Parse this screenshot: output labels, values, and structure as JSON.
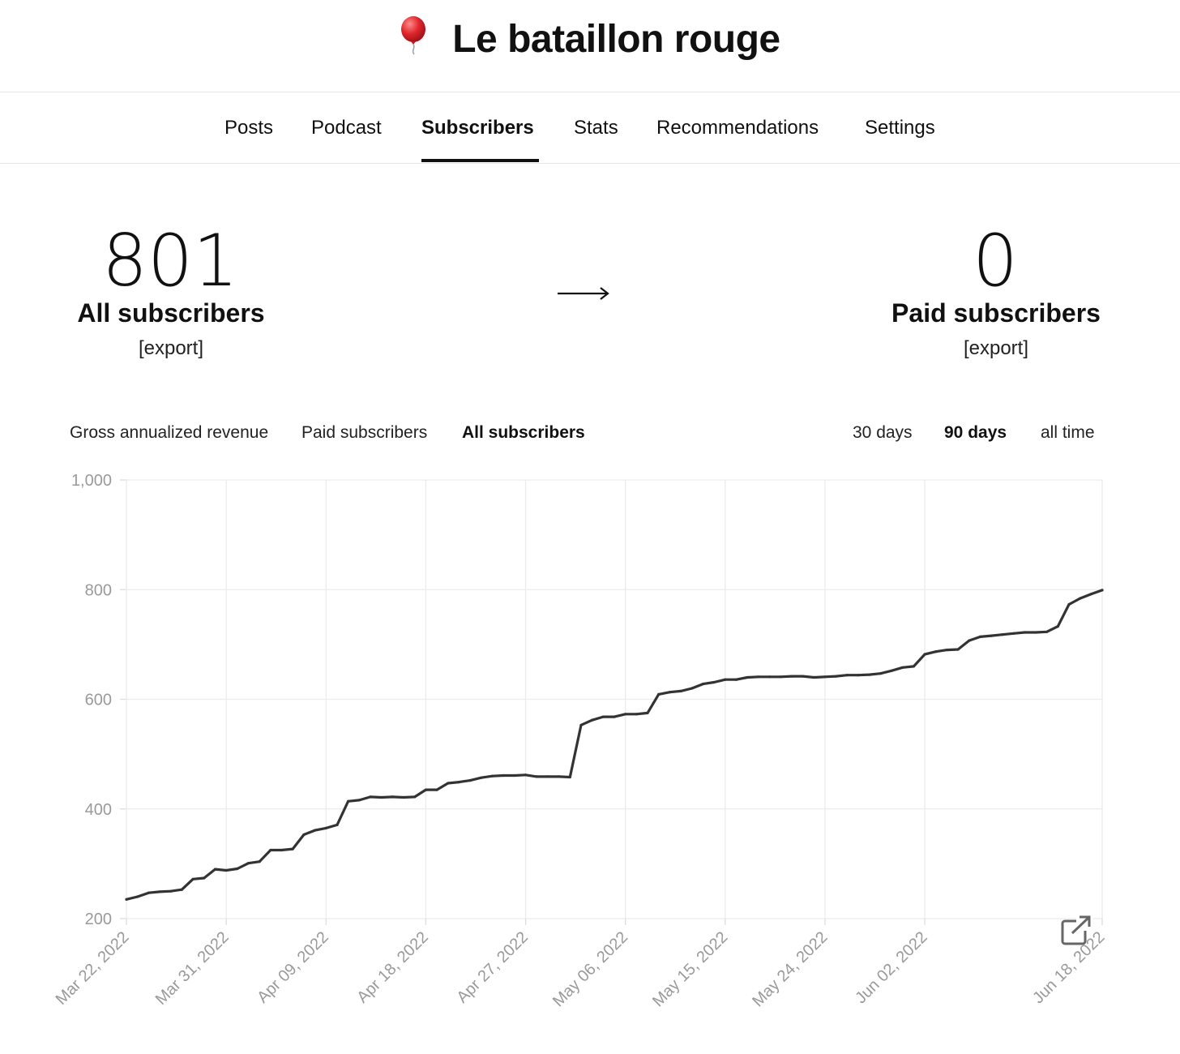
{
  "publication": {
    "title": "Le bataillon rouge",
    "icon": "balloon-icon",
    "icon_color": "#e0262c"
  },
  "nav": {
    "tabs": [
      {
        "label": "Posts"
      },
      {
        "label": "Podcast"
      },
      {
        "label": "Subscribers",
        "active": true
      },
      {
        "label": "Stats"
      },
      {
        "label": "Recommendations"
      },
      {
        "label": "Settings"
      }
    ]
  },
  "stats": {
    "all": {
      "count": "801",
      "label": "All subscribers",
      "export": "[export]"
    },
    "arrow": "→",
    "paid": {
      "count": "0",
      "label": "Paid subscribers",
      "export": "[export]"
    }
  },
  "metric_tabs": [
    {
      "label": "Gross annualized revenue"
    },
    {
      "label": "Paid subscribers"
    },
    {
      "label": "All subscribers",
      "active": true
    }
  ],
  "range_tabs": [
    {
      "label": "30 days"
    },
    {
      "label": "90 days",
      "active": true
    },
    {
      "label": "all time"
    }
  ],
  "chart_data": {
    "type": "line",
    "title": "",
    "xlabel": "",
    "ylabel": "",
    "ylim": [
      200,
      1000
    ],
    "y_ticks": [
      200,
      400,
      600,
      800,
      1000
    ],
    "y_tick_labels": [
      "200",
      "400",
      "600",
      "800",
      "1,000"
    ],
    "x_tick_labels": [
      "Mar 22, 2022",
      "Mar 31, 2022",
      "Apr 09, 2022",
      "Apr 18, 2022",
      "Apr 27, 2022",
      "May 06, 2022",
      "May 15, 2022",
      "May 24, 2022",
      "Jun 02, 2022",
      "Jun 18, 2022"
    ],
    "x_tick_dates": [
      "2022-03-22",
      "2022-03-31",
      "2022-04-09",
      "2022-04-18",
      "2022-04-27",
      "2022-05-06",
      "2022-05-15",
      "2022-05-24",
      "2022-06-02",
      "2022-06-18"
    ],
    "grid": true,
    "line_color": "#333333",
    "series": [
      {
        "points": [
          [
            "2022-03-22",
            235
          ],
          [
            "2022-03-23",
            240
          ],
          [
            "2022-03-24",
            247
          ],
          [
            "2022-03-25",
            249
          ],
          [
            "2022-03-26",
            250
          ],
          [
            "2022-03-27",
            253
          ],
          [
            "2022-03-28",
            272
          ],
          [
            "2022-03-29",
            274
          ],
          [
            "2022-03-30",
            290
          ],
          [
            "2022-03-31",
            288
          ],
          [
            "2022-04-01",
            291
          ],
          [
            "2022-04-02",
            301
          ],
          [
            "2022-04-03",
            304
          ],
          [
            "2022-04-04",
            325
          ],
          [
            "2022-04-05",
            325
          ],
          [
            "2022-04-06",
            327
          ],
          [
            "2022-04-07",
            353
          ],
          [
            "2022-04-08",
            361
          ],
          [
            "2022-04-09",
            365
          ],
          [
            "2022-04-10",
            371
          ],
          [
            "2022-04-11",
            414
          ],
          [
            "2022-04-12",
            416
          ],
          [
            "2022-04-13",
            422
          ],
          [
            "2022-04-14",
            421
          ],
          [
            "2022-04-15",
            422
          ],
          [
            "2022-04-16",
            421
          ],
          [
            "2022-04-17",
            422
          ],
          [
            "2022-04-18",
            435
          ],
          [
            "2022-04-19",
            435
          ],
          [
            "2022-04-20",
            447
          ],
          [
            "2022-04-21",
            449
          ],
          [
            "2022-04-22",
            452
          ],
          [
            "2022-04-23",
            457
          ],
          [
            "2022-04-24",
            460
          ],
          [
            "2022-04-25",
            461
          ],
          [
            "2022-04-26",
            461
          ],
          [
            "2022-04-27",
            462
          ],
          [
            "2022-04-28",
            459
          ],
          [
            "2022-04-29",
            459
          ],
          [
            "2022-04-30",
            459
          ],
          [
            "2022-05-01",
            458
          ],
          [
            "2022-05-02",
            553
          ],
          [
            "2022-05-03",
            562
          ],
          [
            "2022-05-04",
            568
          ],
          [
            "2022-05-05",
            568
          ],
          [
            "2022-05-06",
            573
          ],
          [
            "2022-05-07",
            573
          ],
          [
            "2022-05-08",
            575
          ],
          [
            "2022-05-09",
            609
          ],
          [
            "2022-05-10",
            613
          ],
          [
            "2022-05-11",
            615
          ],
          [
            "2022-05-12",
            620
          ],
          [
            "2022-05-13",
            628
          ],
          [
            "2022-05-14",
            631
          ],
          [
            "2022-05-15",
            636
          ],
          [
            "2022-05-16",
            636
          ],
          [
            "2022-05-17",
            640
          ],
          [
            "2022-05-18",
            641
          ],
          [
            "2022-05-19",
            641
          ],
          [
            "2022-05-20",
            641
          ],
          [
            "2022-05-21",
            642
          ],
          [
            "2022-05-22",
            642
          ],
          [
            "2022-05-23",
            640
          ],
          [
            "2022-05-24",
            641
          ],
          [
            "2022-05-25",
            642
          ],
          [
            "2022-05-26",
            644
          ],
          [
            "2022-05-27",
            644
          ],
          [
            "2022-05-28",
            645
          ],
          [
            "2022-05-29",
            647
          ],
          [
            "2022-05-30",
            652
          ],
          [
            "2022-05-31",
            658
          ],
          [
            "2022-06-01",
            660
          ],
          [
            "2022-06-02",
            682
          ],
          [
            "2022-06-03",
            687
          ],
          [
            "2022-06-04",
            690
          ],
          [
            "2022-06-05",
            691
          ],
          [
            "2022-06-06",
            707
          ],
          [
            "2022-06-07",
            714
          ],
          [
            "2022-06-08",
            716
          ],
          [
            "2022-06-09",
            718
          ],
          [
            "2022-06-10",
            720
          ],
          [
            "2022-06-11",
            722
          ],
          [
            "2022-06-12",
            722
          ],
          [
            "2022-06-13",
            723
          ],
          [
            "2022-06-14",
            733
          ],
          [
            "2022-06-15",
            773
          ],
          [
            "2022-06-16",
            784
          ],
          [
            "2022-06-17",
            792
          ],
          [
            "2022-06-18",
            799
          ]
        ]
      }
    ]
  },
  "chart_actions": {
    "icon": "external-link-icon"
  }
}
